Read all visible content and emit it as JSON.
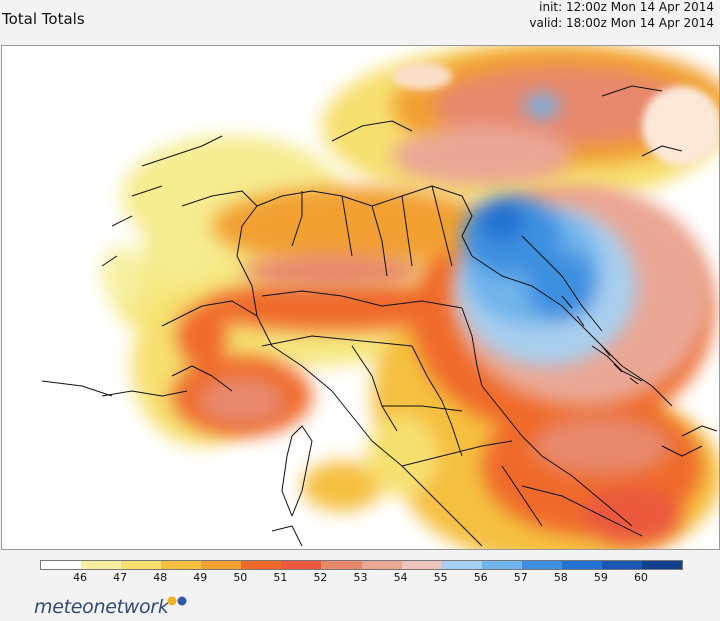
{
  "header": {
    "title": "Total Totals",
    "init": "init: 12:00z Mon 14 Apr 2014",
    "valid": "valid: 18:00z Mon 14 Apr 2014"
  },
  "legend": {
    "labels": [
      "46",
      "47",
      "48",
      "49",
      "50",
      "51",
      "52",
      "53",
      "54",
      "55",
      "56",
      "57",
      "58",
      "59",
      "60"
    ],
    "colors": [
      "#ffffff",
      "#f6f0a0",
      "#f6e070",
      "#f5c040",
      "#f2a030",
      "#ef6a2a",
      "#eb5a3e",
      "#e8886c",
      "#eaa795",
      "#ecc6bf",
      "#a9cfee",
      "#6fb4ea",
      "#3e8fe0",
      "#2372d2",
      "#1b56b4",
      "#12408e"
    ]
  },
  "brand": {
    "name": "meteonetwork",
    "dot_colors": [
      "#f0b020",
      "#2f5aa8"
    ]
  }
}
